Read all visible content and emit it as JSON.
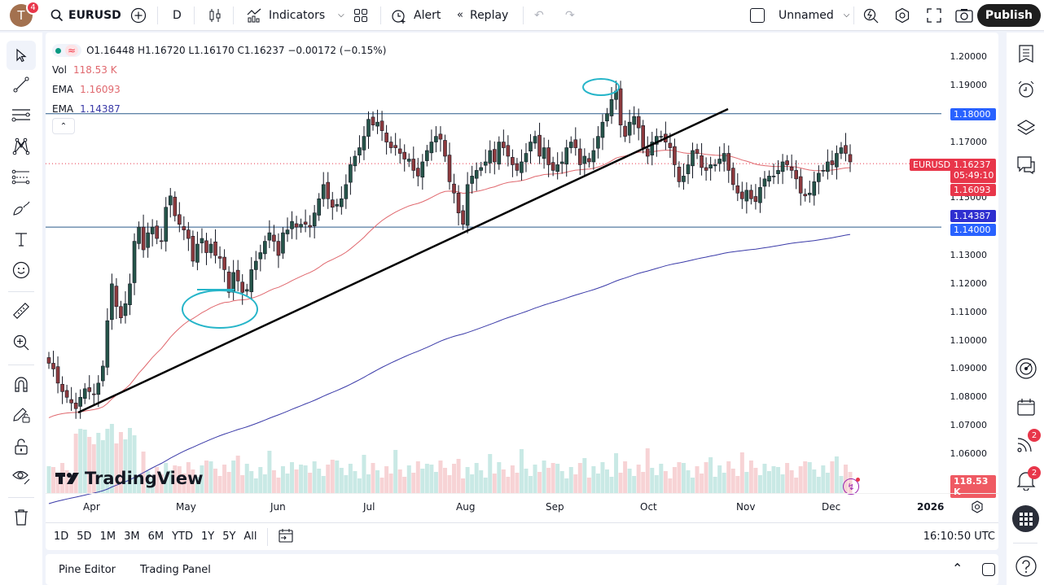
{
  "header": {
    "avatar_letter": "T",
    "avatar_badge": "4",
    "symbol": "EURUSD",
    "interval": "D",
    "indicators_label": "Indicators",
    "alert_label": "Alert",
    "replay_label": "Replay",
    "layout_name": "Unnamed",
    "publish_label": "Publish"
  },
  "legend": {
    "ohlc": "O1.16448 H1.16720 L1.16170 C1.16237 −0.00172 (−0.15%)",
    "vol_label": "Vol",
    "vol_value": "118.53 K",
    "ema1_label": "EMA",
    "ema1_value": "1.16093",
    "ema2_label": "EMA",
    "ema2_value": "1.14387"
  },
  "price_axis": {
    "ticks": [
      "1.20000",
      "1.19000",
      "1.17000",
      "1.13000",
      "1.12000",
      "1.11000",
      "1.10000",
      "1.09000",
      "1.08000",
      "1.07000",
      "1.06000"
    ],
    "tick_values": [
      1.2,
      1.19,
      1.17,
      1.13,
      1.12,
      1.11,
      1.1,
      1.09,
      1.08,
      1.07,
      1.06
    ],
    "partial_tick": "1.15000",
    "tags": {
      "level_high": "1.18000",
      "symbol_tag": "EURUSD",
      "last_price": "1.16237",
      "countdown": "05:49:10",
      "ema_fast": "1.16093",
      "ema_slow": "1.14387",
      "level_low": "1.14000",
      "volume": "118.53 K"
    }
  },
  "time_axis": {
    "labels": [
      {
        "text": "Apr",
        "x": 46
      },
      {
        "text": "May",
        "x": 160
      },
      {
        "text": "Jun",
        "x": 276
      },
      {
        "text": "Jul",
        "x": 390
      },
      {
        "text": "Aug",
        "x": 504
      },
      {
        "text": "Sep",
        "x": 614
      },
      {
        "text": "Oct",
        "x": 730
      },
      {
        "text": "Nov",
        "x": 848
      },
      {
        "text": "Dec",
        "x": 953
      },
      {
        "text": "2026",
        "x": 1070
      }
    ]
  },
  "bottom_bar": {
    "ranges": [
      "1D",
      "5D",
      "1M",
      "3M",
      "6M",
      "YTD",
      "1Y",
      "5Y",
      "All"
    ],
    "clock": "16:10:50 UTC"
  },
  "panel": {
    "tabs": [
      "Pine Editor",
      "Trading Panel"
    ]
  },
  "right_sidebar": {
    "feed_badge": "2",
    "alerts_badge": "2"
  },
  "watermark": "TradingView",
  "colors": {
    "up": "#26554a",
    "down": "#8e3a3e",
    "ema_fast": "#e0686e",
    "ema_slow": "#3a3aa8",
    "level_line": "#2a5a8a",
    "annotation": "#26b5c9",
    "tag_red": "#e8364a",
    "tag_blue": "#2962ff",
    "tag_navy": "#2f2fd0"
  },
  "chart_data": {
    "type": "candlestick",
    "symbol": "EURUSD",
    "interval": "D",
    "ylim": [
      1.055,
      1.205
    ],
    "horizontal_levels": [
      1.18,
      1.14
    ],
    "last": {
      "open": 1.16448,
      "high": 1.1672,
      "low": 1.1617,
      "close": 1.16237,
      "change": -0.00172,
      "change_pct": -0.15
    },
    "ema_fast_last": 1.16093,
    "ema_slow_last": 1.14387,
    "volume_last": "118.53K",
    "closes": [
      1.092,
      1.09,
      1.085,
      1.082,
      1.08,
      1.078,
      1.076,
      1.08,
      1.083,
      1.082,
      1.081,
      1.085,
      1.091,
      1.107,
      1.12,
      1.112,
      1.108,
      1.113,
      1.12,
      1.135,
      1.14,
      1.132,
      1.138,
      1.14,
      1.136,
      1.135,
      1.147,
      1.151,
      1.144,
      1.141,
      1.139,
      1.136,
      1.128,
      1.134,
      1.136,
      1.131,
      1.134,
      1.13,
      1.129,
      1.125,
      1.117,
      1.124,
      1.121,
      1.117,
      1.118,
      1.125,
      1.128,
      1.131,
      1.135,
      1.138,
      1.135,
      1.13,
      1.138,
      1.139,
      1.142,
      1.14,
      1.141,
      1.141,
      1.14,
      1.145,
      1.15,
      1.155,
      1.15,
      1.147,
      1.148,
      1.15,
      1.155,
      1.162,
      1.165,
      1.168,
      1.172,
      1.178,
      1.176,
      1.177,
      1.174,
      1.17,
      1.168,
      1.168,
      1.166,
      1.164,
      1.164,
      1.16,
      1.158,
      1.163,
      1.167,
      1.17,
      1.172,
      1.171,
      1.165,
      1.156,
      1.152,
      1.145,
      1.141,
      1.155,
      1.158,
      1.16,
      1.161,
      1.163,
      1.167,
      1.163,
      1.17,
      1.168,
      1.165,
      1.162,
      1.16,
      1.163,
      1.166,
      1.17,
      1.172,
      1.165,
      1.168,
      1.162,
      1.16,
      1.162,
      1.163,
      1.168,
      1.17,
      1.168,
      1.162,
      1.165,
      1.163,
      1.167,
      1.172,
      1.177,
      1.18,
      1.185,
      1.188,
      1.176,
      1.172,
      1.177,
      1.179,
      1.175,
      1.168,
      1.165,
      1.17,
      1.172,
      1.172,
      1.17,
      1.168,
      1.162,
      1.156,
      1.158,
      1.162,
      1.167,
      1.166,
      1.161,
      1.16,
      1.162,
      1.162,
      1.164,
      1.166,
      1.16,
      1.155,
      1.152,
      1.15,
      1.153,
      1.15,
      1.149,
      1.154,
      1.157,
      1.158,
      1.158,
      1.16,
      1.163,
      1.162,
      1.16,
      1.157,
      1.152,
      1.151,
      1.152,
      1.156,
      1.159,
      1.16,
      1.163,
      1.162,
      1.166,
      1.168,
      1.166,
      1.163
    ]
  }
}
